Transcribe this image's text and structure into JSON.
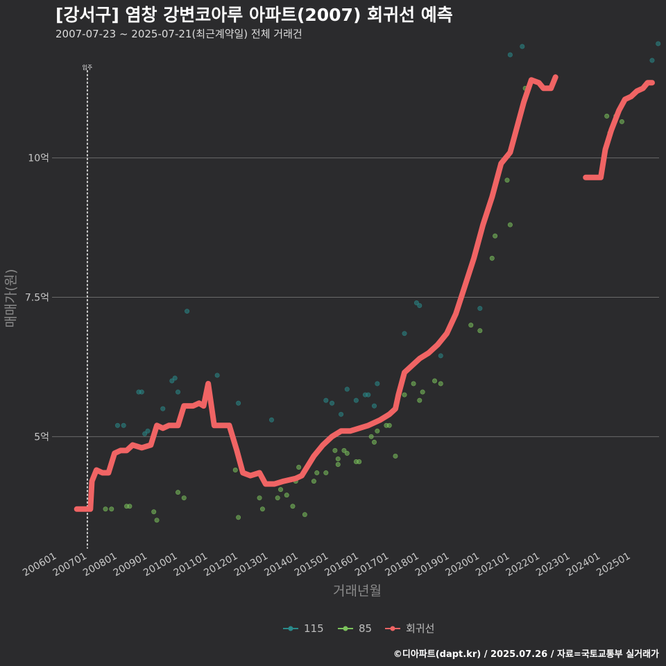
{
  "title": "[강서구] 염창 강변코아루 아파트(2007) 회귀선 예측",
  "subtitle": "2007-07-23 ~ 2025-07-21(최근계약일) 전체 거래건",
  "caption": "©디아파트(dapt.kr) / 2025.07.26 / 자료=국토교통부 실거래가",
  "chart_data": {
    "type": "scatter",
    "xlabel": "거래년월",
    "ylabel": "매매가(원)",
    "xlim": [
      2005.83,
      2025.93
    ],
    "ylim": [
      3.0,
      11.9
    ],
    "x_ticks": [
      {
        "label": "200601",
        "value": 2006.0
      },
      {
        "label": "200701",
        "value": 2007.0
      },
      {
        "label": "200801",
        "value": 2008.0
      },
      {
        "label": "200901",
        "value": 2009.0
      },
      {
        "label": "201001",
        "value": 2010.0
      },
      {
        "label": "201101",
        "value": 2011.0
      },
      {
        "label": "201201",
        "value": 2012.0
      },
      {
        "label": "201301",
        "value": 2013.0
      },
      {
        "label": "201401",
        "value": 2014.0
      },
      {
        "label": "201501",
        "value": 2015.0
      },
      {
        "label": "201601",
        "value": 2016.0
      },
      {
        "label": "201701",
        "value": 2017.0
      },
      {
        "label": "201801",
        "value": 2018.0
      },
      {
        "label": "201901",
        "value": 2019.0
      },
      {
        "label": "202001",
        "value": 2020.0
      },
      {
        "label": "202101",
        "value": 2021.0
      },
      {
        "label": "202201",
        "value": 2022.0
      },
      {
        "label": "202301",
        "value": 2023.0
      },
      {
        "label": "202401",
        "value": 2024.0
      },
      {
        "label": "202501",
        "value": 2025.0
      }
    ],
    "y_ticks": [
      {
        "label": "5억",
        "value": 5.0
      },
      {
        "label": "7.5억",
        "value": 7.5
      },
      {
        "label": "10억",
        "value": 10.0
      }
    ],
    "annotation": {
      "label": "입주",
      "x": 2007.0
    },
    "legend": [
      {
        "name": "115",
        "color": "#2a8a8a"
      },
      {
        "name": "85",
        "color": "#7cc35c"
      },
      {
        "name": "회귀선",
        "color": "#f06464"
      }
    ],
    "series": [
      {
        "name": "115",
        "color": "#2a8a8a",
        "points": [
          [
            2008.0,
            5.2
          ],
          [
            2008.2,
            5.2
          ],
          [
            2008.7,
            5.8
          ],
          [
            2008.8,
            5.8
          ],
          [
            2009.5,
            5.5
          ],
          [
            2009.8,
            6.0
          ],
          [
            2009.9,
            6.05
          ],
          [
            2010.0,
            5.8
          ],
          [
            2010.3,
            7.25
          ],
          [
            2011.3,
            6.1
          ],
          [
            2012.0,
            5.6
          ],
          [
            2013.1,
            5.3
          ],
          [
            2015.1,
            5.6
          ],
          [
            2015.4,
            5.4
          ],
          [
            2015.6,
            5.85
          ],
          [
            2015.9,
            5.65
          ],
          [
            2016.2,
            5.75
          ],
          [
            2016.3,
            5.75
          ],
          [
            2016.5,
            5.55
          ],
          [
            2016.6,
            5.95
          ],
          [
            2017.9,
            7.4
          ],
          [
            2018.0,
            7.35
          ],
          [
            2018.7,
            6.45
          ],
          [
            2020.0,
            7.3
          ],
          [
            2021.0,
            11.85
          ],
          [
            2021.4,
            12.0
          ],
          [
            2025.9,
            12.05
          ],
          [
            2025.7,
            11.75
          ],
          [
            2017.5,
            6.85
          ],
          [
            2014.9,
            5.65
          ],
          [
            2008.9,
            5.05
          ],
          [
            2009.0,
            5.1
          ]
        ]
      },
      {
        "name": "85",
        "color": "#7cc35c",
        "points": [
          [
            2007.6,
            3.7
          ],
          [
            2007.8,
            3.7
          ],
          [
            2008.3,
            3.75
          ],
          [
            2008.4,
            3.75
          ],
          [
            2009.2,
            3.65
          ],
          [
            2009.3,
            3.5
          ],
          [
            2010.0,
            4.0
          ],
          [
            2010.2,
            3.9
          ],
          [
            2011.9,
            4.4
          ],
          [
            2012.0,
            3.55
          ],
          [
            2012.7,
            3.9
          ],
          [
            2012.8,
            3.7
          ],
          [
            2013.3,
            3.9
          ],
          [
            2013.6,
            3.95
          ],
          [
            2013.8,
            3.75
          ],
          [
            2013.9,
            4.2
          ],
          [
            2014.0,
            4.45
          ],
          [
            2014.2,
            3.6
          ],
          [
            2014.5,
            4.2
          ],
          [
            2014.6,
            4.35
          ],
          [
            2014.9,
            4.35
          ],
          [
            2015.2,
            4.75
          ],
          [
            2015.3,
            4.5
          ],
          [
            2015.5,
            4.75
          ],
          [
            2015.6,
            4.7
          ],
          [
            2015.9,
            4.55
          ],
          [
            2016.0,
            4.55
          ],
          [
            2016.4,
            5.0
          ],
          [
            2016.5,
            4.9
          ],
          [
            2016.6,
            5.1
          ],
          [
            2016.9,
            5.2
          ],
          [
            2017.2,
            4.65
          ],
          [
            2017.5,
            5.75
          ],
          [
            2017.8,
            5.95
          ],
          [
            2018.1,
            5.8
          ],
          [
            2018.5,
            6.0
          ],
          [
            2018.7,
            5.95
          ],
          [
            2019.7,
            7.0
          ],
          [
            2020.0,
            6.9
          ],
          [
            2020.4,
            8.2
          ],
          [
            2020.5,
            8.6
          ],
          [
            2020.9,
            9.6
          ],
          [
            2021.0,
            8.8
          ],
          [
            2021.5,
            11.25
          ],
          [
            2024.2,
            10.75
          ],
          [
            2024.5,
            10.75
          ],
          [
            2024.7,
            10.65
          ],
          [
            2024.3,
            10.45
          ],
          [
            2018.0,
            5.65
          ],
          [
            2017.0,
            5.2
          ],
          [
            2015.3,
            4.6
          ],
          [
            2013.4,
            4.05
          ]
        ]
      },
      {
        "name": "회귀선",
        "color": "#f06464",
        "segments": [
          [
            [
              2006.65,
              3.7
            ],
            [
              2007.1,
              3.7
            ],
            [
              2007.15,
              4.2
            ],
            [
              2007.3,
              4.4
            ],
            [
              2007.5,
              4.35
            ],
            [
              2007.7,
              4.35
            ],
            [
              2007.9,
              4.7
            ],
            [
              2008.1,
              4.75
            ],
            [
              2008.3,
              4.75
            ],
            [
              2008.5,
              4.85
            ],
            [
              2008.8,
              4.8
            ],
            [
              2009.1,
              4.85
            ],
            [
              2009.3,
              5.2
            ],
            [
              2009.5,
              5.15
            ],
            [
              2009.7,
              5.2
            ],
            [
              2010.0,
              5.2
            ],
            [
              2010.2,
              5.55
            ],
            [
              2010.5,
              5.55
            ],
            [
              2010.7,
              5.6
            ],
            [
              2010.85,
              5.55
            ],
            [
              2011.0,
              5.95
            ],
            [
              2011.2,
              5.2
            ],
            [
              2011.4,
              5.2
            ],
            [
              2011.7,
              5.2
            ],
            [
              2011.95,
              4.75
            ],
            [
              2012.15,
              4.35
            ],
            [
              2012.4,
              4.3
            ],
            [
              2012.7,
              4.35
            ],
            [
              2012.9,
              4.15
            ],
            [
              2013.2,
              4.15
            ],
            [
              2013.5,
              4.2
            ],
            [
              2013.9,
              4.25
            ],
            [
              2014.1,
              4.3
            ],
            [
              2014.5,
              4.65
            ],
            [
              2014.8,
              4.85
            ],
            [
              2015.1,
              5.0
            ],
            [
              2015.4,
              5.1
            ],
            [
              2015.7,
              5.1
            ],
            [
              2016.0,
              5.15
            ],
            [
              2016.3,
              5.2
            ],
            [
              2016.7,
              5.3
            ],
            [
              2017.0,
              5.4
            ],
            [
              2017.2,
              5.5
            ],
            [
              2017.3,
              5.75
            ],
            [
              2017.5,
              6.15
            ],
            [
              2017.7,
              6.25
            ],
            [
              2018.0,
              6.4
            ],
            [
              2018.3,
              6.5
            ],
            [
              2018.6,
              6.65
            ],
            [
              2018.9,
              6.85
            ],
            [
              2019.2,
              7.2
            ],
            [
              2019.5,
              7.7
            ],
            [
              2019.8,
              8.2
            ],
            [
              2020.1,
              8.8
            ],
            [
              2020.4,
              9.3
            ],
            [
              2020.7,
              9.9
            ],
            [
              2021.0,
              10.1
            ],
            [
              2021.2,
              10.5
            ],
            [
              2021.45,
              11.0
            ],
            [
              2021.7,
              11.4
            ],
            [
              2021.95,
              11.35
            ],
            [
              2022.1,
              11.25
            ],
            [
              2022.35,
              11.25
            ],
            [
              2022.5,
              11.45
            ]
          ],
          [
            [
              2023.5,
              9.65
            ],
            [
              2023.8,
              9.65
            ],
            [
              2024.0,
              9.65
            ],
            [
              2024.15,
              10.15
            ],
            [
              2024.35,
              10.5
            ],
            [
              2024.6,
              10.85
            ],
            [
              2024.8,
              11.05
            ],
            [
              2025.0,
              11.1
            ],
            [
              2025.2,
              11.2
            ],
            [
              2025.4,
              11.25
            ],
            [
              2025.55,
              11.35
            ],
            [
              2025.7,
              11.35
            ]
          ]
        ]
      }
    ]
  }
}
